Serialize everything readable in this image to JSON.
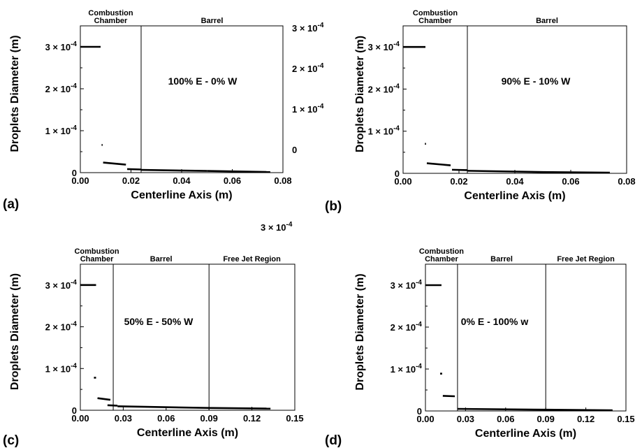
{
  "chart_data": [
    {
      "id": "a",
      "type": "scatter",
      "panel_label": "(a)",
      "xlabel": "Centerline Axis (m)",
      "ylabel": "Droplets Diameter (m)",
      "xlim": [
        0,
        0.08
      ],
      "ylim": [
        0,
        0.00035
      ],
      "x_ticks": [
        "0.00",
        "0.02",
        "0.04",
        "0.06",
        "0.08"
      ],
      "y_ticks": [
        "0",
        "1 × 10",
        "2 × 10",
        "3 × 10"
      ],
      "y_tick_exponent": "-4",
      "right_axis_ticks": [
        "0",
        "1 × 10",
        "2 × 10",
        "3 × 10"
      ],
      "regions": [
        {
          "label_lines": [
            "Combustion",
            "Chamber"
          ],
          "x_start": 0,
          "x_end": 0.024
        },
        {
          "label_lines": [
            "Barrel"
          ],
          "x_start": 0.024,
          "x_end": 0.08
        }
      ],
      "boundaries": [
        0.024
      ],
      "annotation": "100% E - 0% W",
      "segments": [
        {
          "x": [
            0.0,
            0.008
          ],
          "y": [
            0.0003,
            0.0003
          ]
        },
        {
          "x": [
            0.0084,
            0.0088
          ],
          "y": [
            6.6e-05,
            6.6e-05
          ]
        },
        {
          "x": [
            0.009,
            0.018
          ],
          "y": [
            2.4e-05,
            1.9e-05
          ]
        },
        {
          "x": [
            0.0185,
            0.024
          ],
          "y": [
            8.5e-06,
            7.5e-06
          ]
        },
        {
          "x": [
            0.024,
            0.05
          ],
          "y": [
            6.5e-06,
            4e-06
          ]
        },
        {
          "x": [
            0.05,
            0.075
          ],
          "y": [
            4e-06,
            1.5e-06
          ]
        }
      ]
    },
    {
      "id": "b",
      "type": "scatter",
      "panel_label": "(b)",
      "xlabel": "Centerline Axis (m)",
      "ylabel": "Droplets Diameter (m)",
      "xlim": [
        0,
        0.08
      ],
      "ylim": [
        0,
        0.00035
      ],
      "x_ticks": [
        "0.00",
        "0.02",
        "0.04",
        "0.06",
        "0.08"
      ],
      "y_ticks": [
        "0",
        "1 × 10",
        "2 × 10",
        "3 × 10"
      ],
      "y_tick_exponent": "-4",
      "regions": [
        {
          "label_lines": [
            "Combustion",
            "Chamber"
          ],
          "x_start": 0,
          "x_end": 0.023
        },
        {
          "label_lines": [
            "Barrel"
          ],
          "x_start": 0.023,
          "x_end": 0.08
        }
      ],
      "boundaries": [
        0.023
      ],
      "annotation": "90% E - 10% W",
      "segments": [
        {
          "x": [
            0.0,
            0.008
          ],
          "y": [
            0.0003,
            0.0003
          ]
        },
        {
          "x": [
            0.0078,
            0.0082
          ],
          "y": [
            7e-05,
            7e-05
          ]
        },
        {
          "x": [
            0.0085,
            0.017
          ],
          "y": [
            2.4e-05,
            1.9e-05
          ]
        },
        {
          "x": [
            0.0175,
            0.023
          ],
          "y": [
            8.5e-06,
            7.5e-06
          ]
        },
        {
          "x": [
            0.023,
            0.05
          ],
          "y": [
            6e-06,
            3e-06
          ]
        },
        {
          "x": [
            0.05,
            0.074
          ],
          "y": [
            3e-06,
            1.5e-06
          ]
        }
      ]
    },
    {
      "id": "c",
      "type": "scatter",
      "panel_label": "(c)",
      "xlabel": "Centerline Axis (m)",
      "ylabel": "Droplets Diameter (m)",
      "xlim": [
        0,
        0.15
      ],
      "ylim": [
        0,
        0.00035
      ],
      "x_ticks": [
        "0.00",
        "0.03",
        "0.06",
        "0.09",
        "0.12",
        "0.15"
      ],
      "y_ticks": [
        "0",
        "1 × 10",
        "2 × 10",
        "3 × 10"
      ],
      "y_tick_exponent": "-4",
      "regions": [
        {
          "label_lines": [
            "Combustion",
            "Chamber"
          ],
          "x_start": 0,
          "x_end": 0.023
        },
        {
          "label_lines": [
            "Barrel"
          ],
          "x_start": 0.023,
          "x_end": 0.09
        },
        {
          "label_lines": [
            "Free Jet Region"
          ],
          "x_start": 0.09,
          "x_end": 0.15
        }
      ],
      "boundaries": [
        0.023,
        0.09
      ],
      "annotation": "50% E - 50% W",
      "segments": [
        {
          "x": [
            0.0,
            0.011
          ],
          "y": [
            0.0003,
            0.0003
          ]
        },
        {
          "x": [
            0.0095,
            0.011
          ],
          "y": [
            7.8e-05,
            7.8e-05
          ]
        },
        {
          "x": [
            0.012,
            0.021
          ],
          "y": [
            2.9e-05,
            2.5e-05
          ]
        },
        {
          "x": [
            0.019,
            0.026
          ],
          "y": [
            1.2e-05,
            1.1e-05
          ]
        },
        {
          "x": [
            0.026,
            0.09
          ],
          "y": [
            9.5e-06,
            5.5e-06
          ]
        },
        {
          "x": [
            0.09,
            0.133
          ],
          "y": [
            5.5e-06,
            4e-06
          ]
        }
      ]
    },
    {
      "id": "d",
      "type": "scatter",
      "panel_label": "(d)",
      "xlabel": "Centerline Axis (m)",
      "ylabel": "Droplets Diameter (m)",
      "xlim": [
        0,
        0.15
      ],
      "ylim": [
        0,
        0.00035
      ],
      "x_ticks": [
        "0.00",
        "0.03",
        "0.06",
        "0.09",
        "0.12",
        "0.15"
      ],
      "y_ticks": [
        "0",
        "1 × 10",
        "2 × 10",
        "3 × 10"
      ],
      "y_tick_exponent": "-4",
      "regions": [
        {
          "label_lines": [
            "Combustion",
            "Chamber"
          ],
          "x_start": 0,
          "x_end": 0.024
        },
        {
          "label_lines": [
            "Barrel"
          ],
          "x_start": 0.024,
          "x_end": 0.09
        },
        {
          "label_lines": [
            "Free Jet Region"
          ],
          "x_start": 0.09,
          "x_end": 0.15
        }
      ],
      "boundaries": [
        0.024,
        0.09
      ],
      "annotation": "0% E - 100% w",
      "segments": [
        {
          "x": [
            0.0,
            0.012
          ],
          "y": [
            0.0003,
            0.0003
          ]
        },
        {
          "x": [
            0.011,
            0.0125
          ],
          "y": [
            8.9e-05,
            8.9e-05
          ]
        },
        {
          "x": [
            0.013,
            0.022
          ],
          "y": [
            3.6e-05,
            3.5e-05
          ]
        },
        {
          "x": [
            0.024,
            0.09
          ],
          "y": [
            5e-06,
            3e-06
          ]
        },
        {
          "x": [
            0.09,
            0.14
          ],
          "y": [
            3e-06,
            1.5e-06
          ]
        }
      ]
    }
  ],
  "stray_label": {
    "base": "3 × 10",
    "exponent": "-4"
  }
}
